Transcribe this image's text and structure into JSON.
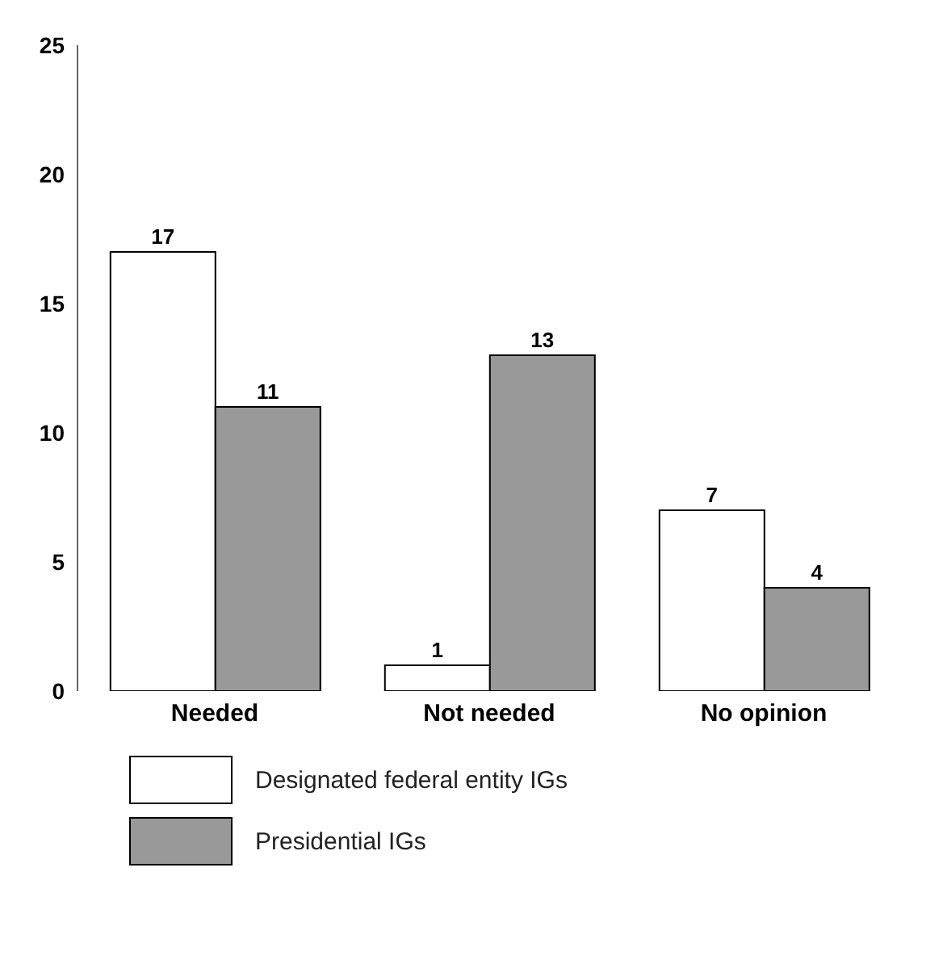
{
  "chart_data": {
    "type": "bar",
    "categories": [
      "Needed",
      "Not needed",
      "No opinion"
    ],
    "series": [
      {
        "name": "Designated federal entity IGs",
        "color": "#ffffff",
        "values": [
          17,
          1,
          7
        ]
      },
      {
        "name": "Presidential IGs",
        "color": "#999999",
        "values": [
          11,
          13,
          4
        ]
      }
    ],
    "ylim": [
      0,
      25
    ],
    "yticks": [
      0,
      5,
      10,
      15,
      20,
      25
    ],
    "legend": "bottom",
    "data_labels": true
  }
}
